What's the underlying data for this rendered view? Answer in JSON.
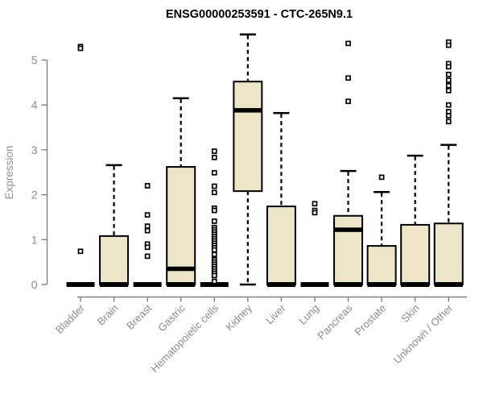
{
  "title": "ENSG00000253591 - CTC-265N9.1",
  "chart_data": {
    "type": "boxplot",
    "title": "ENSG00000253591 - CTC-265N9.1",
    "xlabel": "",
    "ylabel": "Expression",
    "ylim": [
      0,
      5.6
    ],
    "yticks": [
      0,
      1,
      2,
      3,
      4,
      5
    ],
    "grid": false,
    "legend": null,
    "categories": [
      "Bladder",
      "Brain",
      "Breast",
      "Gastric",
      "Hematopoietic cells",
      "Kidney",
      "Liver",
      "Lung",
      "Pancreas",
      "Prostate",
      "Skin",
      "Unknown / Other"
    ],
    "series": [
      {
        "category": "Bladder",
        "whisker_low": 0,
        "q1": 0,
        "median": 0,
        "q3": 0,
        "whisker_high": 0,
        "outliers": [
          5.3,
          5.26,
          0.74
        ]
      },
      {
        "category": "Brain",
        "whisker_low": 0,
        "q1": 0,
        "median": 0,
        "q3": 1.08,
        "whisker_high": 2.66,
        "outliers": []
      },
      {
        "category": "Breast",
        "whisker_low": 0,
        "q1": 0,
        "median": 0,
        "q3": 0,
        "whisker_high": 0,
        "outliers": [
          2.2,
          1.55,
          1.3,
          1.2,
          0.9,
          0.83,
          0.63
        ]
      },
      {
        "category": "Gastric",
        "whisker_low": 0,
        "q1": 0,
        "median": 0.35,
        "q3": 2.62,
        "whisker_high": 4.15,
        "outliers": []
      },
      {
        "category": "Hematopoietic cells",
        "whisker_low": 0,
        "q1": 0,
        "median": 0,
        "q3": 0,
        "whisker_high": 0,
        "outliers": [
          2.97,
          2.83,
          2.49,
          2.19,
          2.05,
          1.7,
          1.65,
          1.41,
          1.27,
          1.22,
          1.17,
          1.12,
          1.07,
          1.02,
          0.97,
          0.92,
          0.87,
          0.82,
          0.77,
          0.67,
          0.55,
          0.5,
          0.45,
          0.4,
          0.35,
          0.3,
          0.25,
          0.2,
          0.07
        ]
      },
      {
        "category": "Kidney",
        "whisker_low": 0,
        "q1": 2.08,
        "median": 3.88,
        "q3": 4.52,
        "whisker_high": 5.57,
        "outliers": []
      },
      {
        "category": "Liver",
        "whisker_low": 0,
        "q1": 0,
        "median": 0,
        "q3": 1.74,
        "whisker_high": 3.82,
        "outliers": []
      },
      {
        "category": "Lung",
        "whisker_low": 0,
        "q1": 0,
        "median": 0,
        "q3": 0,
        "whisker_high": 0,
        "outliers": [
          1.8,
          1.65,
          1.6
        ]
      },
      {
        "category": "Pancreas",
        "whisker_low": 0,
        "q1": 0,
        "median": 1.22,
        "q3": 1.53,
        "whisker_high": 2.53,
        "outliers": [
          5.37,
          4.6,
          4.08
        ]
      },
      {
        "category": "Prostate",
        "whisker_low": 0,
        "q1": 0,
        "median": 0,
        "q3": 0.86,
        "whisker_high": 2.06,
        "outliers": [
          2.39
        ]
      },
      {
        "category": "Skin",
        "whisker_low": 0,
        "q1": 0,
        "median": 0,
        "q3": 1.33,
        "whisker_high": 2.87,
        "outliers": []
      },
      {
        "category": "Unknown / Other",
        "whisker_low": 0,
        "q1": 0,
        "median": 0,
        "q3": 1.36,
        "whisker_high": 3.11,
        "outliers": [
          5.4,
          5.33,
          4.92,
          4.85,
          4.68,
          4.55,
          4.43,
          4.32,
          4.0,
          3.85,
          3.76,
          3.63
        ]
      }
    ],
    "colors": {
      "box_fill": "#EDE5C8",
      "box_border": "#000000",
      "median": "#000000",
      "whisker": "#000000",
      "outlier_border": "#000000",
      "axis": "#808080",
      "tick_label": "#8C8C8C",
      "title": "#000000"
    }
  }
}
